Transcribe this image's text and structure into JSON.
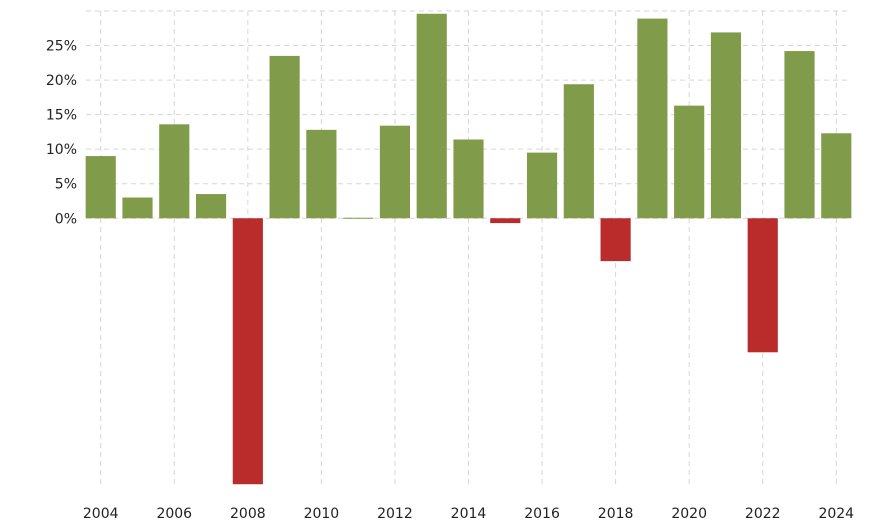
{
  "chart_data": {
    "type": "bar",
    "title": "",
    "xlabel": "",
    "ylabel": "",
    "x": [
      2004,
      2005,
      2006,
      2007,
      2008,
      2009,
      2010,
      2011,
      2012,
      2013,
      2014,
      2015,
      2016,
      2017,
      2018,
      2019,
      2020,
      2021,
      2022,
      2023,
      2024
    ],
    "values": [
      9.0,
      3.0,
      13.6,
      3.5,
      -38.5,
      23.5,
      12.8,
      0.0,
      13.4,
      29.6,
      11.4,
      -0.7,
      9.5,
      19.4,
      -6.2,
      28.9,
      16.3,
      26.9,
      -19.4,
      24.2,
      12.3
    ],
    "x_tick_labels": [
      "2004",
      "2006",
      "2008",
      "2010",
      "2012",
      "2014",
      "2016",
      "2018",
      "2020",
      "2022",
      "2024"
    ],
    "y_tick_labels": [
      "0%",
      "5%",
      "10%",
      "15%",
      "20%",
      "25%"
    ],
    "y_ticks": [
      0,
      5,
      10,
      15,
      20,
      25
    ],
    "ylim": [
      -38.9,
      30.0
    ],
    "xlim": [
      2003.6,
      2024.4
    ],
    "grid": true,
    "legend": "none",
    "colors": {
      "positive": "#809B49",
      "negative": "#BA2B2B",
      "grid": "#d6d6d6",
      "text": "#222222"
    }
  }
}
